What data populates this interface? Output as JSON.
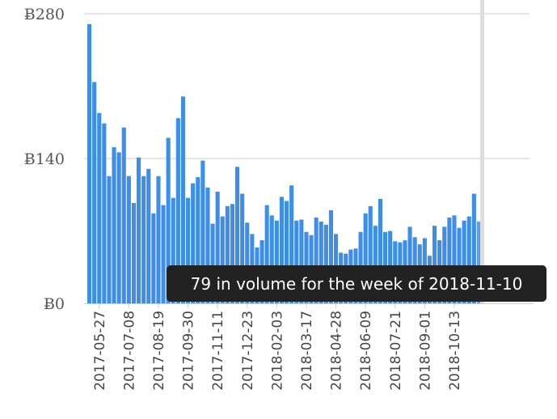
{
  "chart_data": {
    "type": "bar",
    "ylim": [
      0,
      280
    ],
    "y_ticks": [
      "Ƀ280",
      "Ƀ140",
      "Ƀ0"
    ],
    "y_tick_values": [
      280,
      140,
      0
    ],
    "grid": true,
    "bar_color": "#3d8ee8",
    "cursor_color": "#dddddd",
    "x_tick_labels": [
      "2017-05-27",
      "2017-07-08",
      "2017-08-19",
      "2017-09-30",
      "2017-11-11",
      "2017-12-23",
      "2018-02-03",
      "2018-03-17",
      "2018-04-28",
      "2018-06-09",
      "2018-07-21",
      "2018-09-01",
      "2018-10-13"
    ],
    "x_tick_positions": [
      2,
      8,
      14,
      20,
      26,
      32,
      38,
      44,
      50,
      56,
      62,
      68,
      74
    ],
    "values": [
      270,
      214,
      184,
      174,
      123,
      151,
      146,
      170,
      123,
      97,
      141,
      123,
      130,
      87,
      123,
      95,
      160,
      102,
      179,
      200,
      102,
      116,
      122,
      138,
      112,
      77,
      108,
      84,
      94,
      96,
      132,
      106,
      78,
      67,
      54,
      61,
      95,
      85,
      80,
      103,
      99,
      114,
      80,
      81,
      69,
      66,
      83,
      79,
      76,
      90,
      67,
      49,
      48,
      52,
      53,
      69,
      87,
      94,
      75,
      101,
      69,
      70,
      60,
      59,
      61,
      74,
      64,
      57,
      63,
      46,
      75,
      61,
      74,
      83,
      85,
      73,
      80,
      84,
      106,
      79
    ],
    "tooltip": "79 in volume for the week of 2018-11-10"
  }
}
